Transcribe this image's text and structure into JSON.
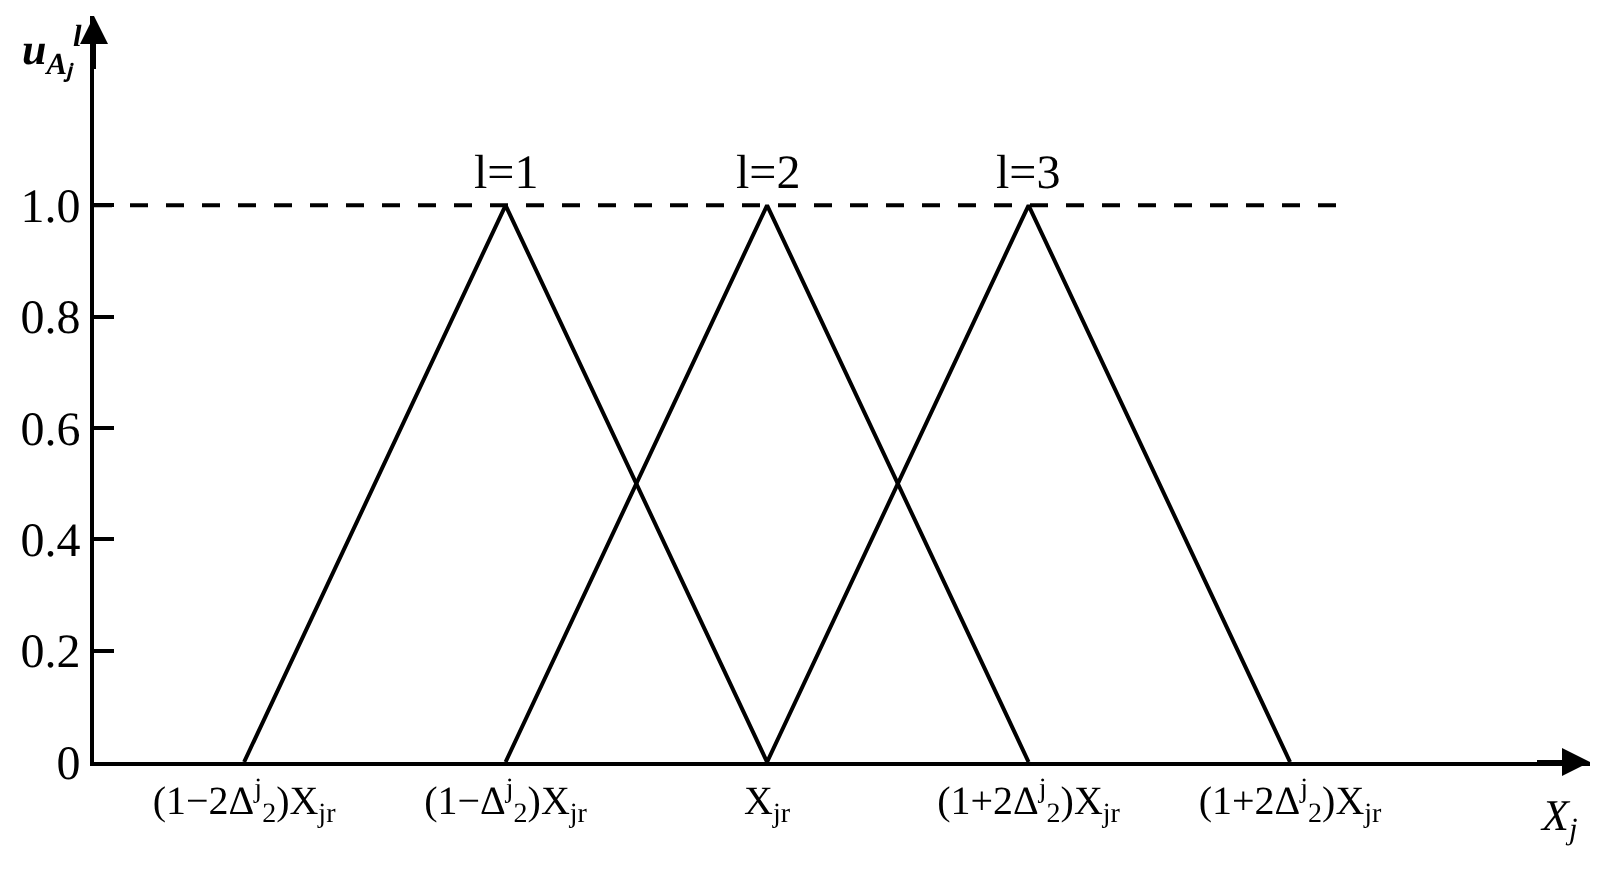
{
  "chart_data": {
    "type": "line",
    "xlabel": "X$_{j}$",
    "ylabel": "u$_{Aⱼ}$$^{l}$",
    "categories": [
      "(1−2Δ$^{j}$$_{2}$)X$_{jr}$",
      "(1−Δ$^{j}$$_{2}$)X$_{jr}$",
      "X$_{jr}$",
      "(1+2Δ$^{j}$$_{2}$)X$_{jr}$",
      "(1+2Δ$^{j}$$_{2}$)X$_{jr}$"
    ],
    "series": [
      {
        "name": "l=1",
        "color": "#000000",
        "values": [
          0,
          1,
          0,
          null,
          null
        ]
      },
      {
        "name": "l=2",
        "color": "#000000",
        "values": [
          null,
          0,
          1,
          0,
          null
        ]
      },
      {
        "name": "l=3",
        "color": "#000000",
        "values": [
          null,
          null,
          0,
          1,
          0
        ]
      }
    ],
    "ylim": [
      0,
      1.34
    ],
    "yticks": [
      0,
      0.2,
      0.4,
      0.6,
      0.8,
      {
        "value": 1,
        "label": "1.0"
      }
    ],
    "ref_lines": [
      {
        "axis": "y",
        "value": 1,
        "line_style": "dashed",
        "color": "#000000"
      }
    ],
    "grid": false,
    "legend": false,
    "marker": "none",
    "line_style": "solid"
  }
}
